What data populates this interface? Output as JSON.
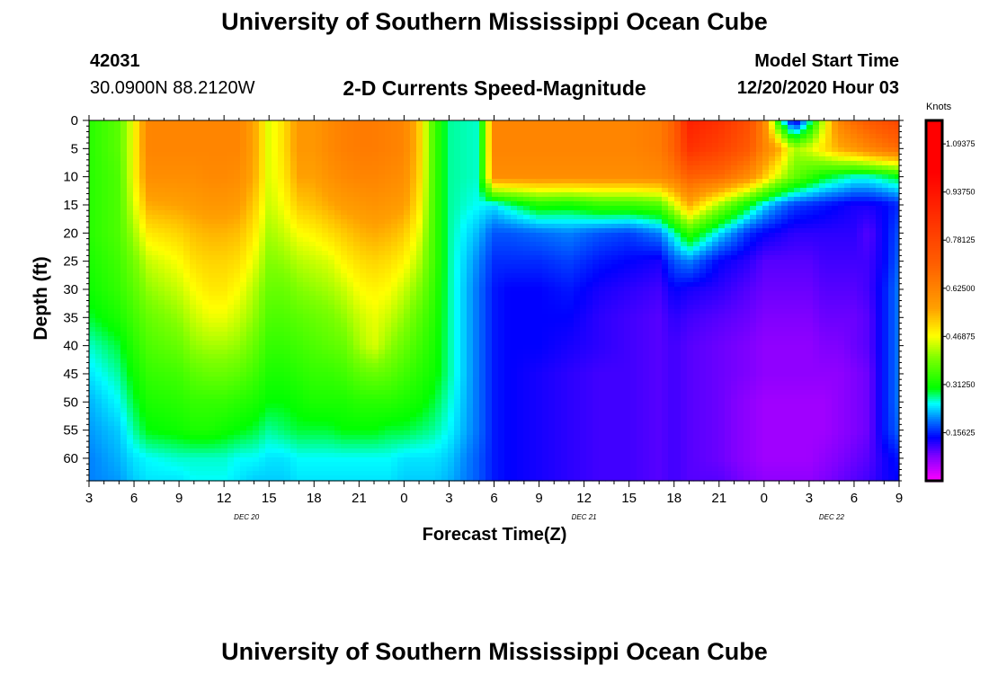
{
  "page": {
    "title_top": "University of Southern Mississippi Ocean Cube",
    "title_bottom": "University of Southern Mississippi Ocean Cube",
    "station_id": "42031",
    "coordinates": "30.0900N 88.2120W",
    "chart_title": "2-D Currents Speed-Magnitude",
    "model_label": "Model Start Time",
    "model_time": "12/20/2020 Hour 03"
  },
  "colors": {
    "background": "#ffffff",
    "axis": "#000000"
  },
  "chart_data": {
    "type": "heatmap",
    "title": "2-D Currents Speed-Magnitude",
    "xlabel": "Forecast Time(Z)",
    "ylabel": "Depth (ft)",
    "x_tick_labels": [
      "3",
      "6",
      "9",
      "12",
      "15",
      "18",
      "21",
      "0",
      "3",
      "6",
      "9",
      "12",
      "15",
      "18",
      "21",
      "0",
      "3",
      "6",
      "9"
    ],
    "x_hours_range": [
      0,
      54
    ],
    "date_labels": [
      {
        "text": "DEC 20",
        "hour": 10.5
      },
      {
        "text": "DEC 21",
        "hour": 33
      },
      {
        "text": "DEC 22",
        "hour": 49.5
      }
    ],
    "y_tick_labels": [
      "0",
      "5",
      "10",
      "15",
      "20",
      "25",
      "30",
      "35",
      "40",
      "45",
      "50",
      "55",
      "60"
    ],
    "y_range": [
      0,
      64
    ],
    "colorbar": {
      "unit": "Knots",
      "range": [
        0,
        1.17
      ],
      "tick_labels": [
        "1.09375",
        "0.93750",
        "0.78125",
        "0.62500",
        "0.46875",
        "0.31250",
        "0.15625"
      ],
      "tick_values": [
        1.09375,
        0.9375,
        0.78125,
        0.625,
        0.46875,
        0.3125,
        0.15625
      ],
      "stops": [
        {
          "v": 0.0,
          "color": "#ff00ff"
        },
        {
          "v": 0.08,
          "color": "#8000ff"
        },
        {
          "v": 0.14,
          "color": "#0000ff"
        },
        {
          "v": 0.2,
          "color": "#0080ff"
        },
        {
          "v": 0.25,
          "color": "#00ffff"
        },
        {
          "v": 0.3,
          "color": "#00ff00"
        },
        {
          "v": 0.4,
          "color": "#80ff00"
        },
        {
          "v": 0.47,
          "color": "#ffff00"
        },
        {
          "v": 0.56,
          "color": "#ffa000"
        },
        {
          "v": 0.7,
          "color": "#ff6000"
        },
        {
          "v": 1.0,
          "color": "#ff0000"
        },
        {
          "v": 1.17,
          "color": "#ff0000"
        }
      ]
    },
    "speed_field": {
      "t_hours": [
        0,
        2,
        3,
        4,
        6,
        7,
        8,
        9,
        10,
        11,
        12,
        13,
        14,
        15,
        16,
        17,
        18,
        19,
        20,
        21,
        22,
        23,
        24,
        26,
        27,
        28,
        30,
        32,
        34,
        36,
        38,
        39,
        40,
        42,
        44,
        45,
        46,
        47,
        48,
        49,
        50,
        51,
        52,
        53,
        54
      ],
      "depths_ft": [
        0,
        5,
        10,
        15,
        20,
        25,
        30,
        35,
        40,
        45,
        50,
        55,
        60,
        64
      ],
      "values_knots": [
        [
          0.33,
          0.33,
          0.33,
          0.33,
          0.33,
          0.32,
          0.31,
          0.29,
          0.26,
          0.24,
          0.22,
          0.21,
          0.2,
          0.2
        ],
        [
          0.37,
          0.37,
          0.36,
          0.36,
          0.36,
          0.35,
          0.34,
          0.32,
          0.29,
          0.27,
          0.25,
          0.23,
          0.22,
          0.21
        ],
        [
          0.47,
          0.47,
          0.47,
          0.45,
          0.42,
          0.39,
          0.37,
          0.35,
          0.33,
          0.31,
          0.29,
          0.27,
          0.24,
          0.23
        ],
        [
          0.62,
          0.62,
          0.6,
          0.55,
          0.49,
          0.44,
          0.41,
          0.38,
          0.36,
          0.34,
          0.32,
          0.3,
          0.25,
          0.24
        ],
        [
          0.62,
          0.62,
          0.6,
          0.56,
          0.51,
          0.47,
          0.44,
          0.41,
          0.38,
          0.35,
          0.33,
          0.31,
          0.26,
          0.24
        ],
        [
          0.62,
          0.62,
          0.6,
          0.57,
          0.53,
          0.5,
          0.47,
          0.44,
          0.41,
          0.37,
          0.34,
          0.32,
          0.26,
          0.25
        ],
        [
          0.62,
          0.62,
          0.61,
          0.58,
          0.54,
          0.51,
          0.49,
          0.46,
          0.42,
          0.38,
          0.34,
          0.32,
          0.26,
          0.25
        ],
        [
          0.62,
          0.62,
          0.61,
          0.58,
          0.54,
          0.51,
          0.49,
          0.46,
          0.42,
          0.38,
          0.34,
          0.31,
          0.26,
          0.25
        ],
        [
          0.62,
          0.62,
          0.6,
          0.57,
          0.53,
          0.5,
          0.47,
          0.44,
          0.41,
          0.37,
          0.33,
          0.3,
          0.25,
          0.24
        ],
        [
          0.56,
          0.56,
          0.55,
          0.52,
          0.49,
          0.46,
          0.43,
          0.41,
          0.38,
          0.35,
          0.32,
          0.29,
          0.25,
          0.23
        ],
        [
          0.45,
          0.45,
          0.45,
          0.44,
          0.42,
          0.4,
          0.38,
          0.36,
          0.34,
          0.32,
          0.3,
          0.27,
          0.24,
          0.23
        ],
        [
          0.5,
          0.5,
          0.49,
          0.47,
          0.44,
          0.41,
          0.38,
          0.36,
          0.34,
          0.32,
          0.3,
          0.28,
          0.24,
          0.23
        ],
        [
          0.58,
          0.58,
          0.56,
          0.52,
          0.47,
          0.43,
          0.4,
          0.37,
          0.35,
          0.33,
          0.31,
          0.29,
          0.25,
          0.24
        ],
        [
          0.58,
          0.58,
          0.56,
          0.53,
          0.48,
          0.44,
          0.41,
          0.38,
          0.36,
          0.34,
          0.32,
          0.29,
          0.25,
          0.24
        ],
        [
          0.61,
          0.61,
          0.59,
          0.55,
          0.5,
          0.45,
          0.42,
          0.39,
          0.37,
          0.34,
          0.32,
          0.29,
          0.25,
          0.24
        ],
        [
          0.63,
          0.63,
          0.61,
          0.57,
          0.52,
          0.48,
          0.44,
          0.41,
          0.38,
          0.35,
          0.32,
          0.3,
          0.25,
          0.24
        ],
        [
          0.64,
          0.64,
          0.62,
          0.58,
          0.54,
          0.5,
          0.47,
          0.44,
          0.42,
          0.37,
          0.33,
          0.3,
          0.25,
          0.24
        ],
        [
          0.64,
          0.64,
          0.62,
          0.59,
          0.55,
          0.51,
          0.48,
          0.46,
          0.45,
          0.38,
          0.33,
          0.3,
          0.25,
          0.24
        ],
        [
          0.63,
          0.63,
          0.61,
          0.58,
          0.54,
          0.5,
          0.47,
          0.44,
          0.41,
          0.37,
          0.33,
          0.29,
          0.25,
          0.24
        ],
        [
          0.62,
          0.62,
          0.6,
          0.57,
          0.52,
          0.48,
          0.44,
          0.41,
          0.38,
          0.35,
          0.32,
          0.29,
          0.24,
          0.23
        ],
        [
          0.52,
          0.52,
          0.51,
          0.49,
          0.46,
          0.43,
          0.4,
          0.37,
          0.35,
          0.33,
          0.31,
          0.28,
          0.24,
          0.23
        ],
        [
          0.35,
          0.35,
          0.35,
          0.35,
          0.35,
          0.35,
          0.34,
          0.33,
          0.32,
          0.31,
          0.29,
          0.27,
          0.24,
          0.23
        ],
        [
          0.27,
          0.27,
          0.27,
          0.27,
          0.27,
          0.27,
          0.27,
          0.27,
          0.27,
          0.27,
          0.26,
          0.25,
          0.23,
          0.22
        ],
        [
          0.26,
          0.26,
          0.26,
          0.25,
          0.22,
          0.2,
          0.19,
          0.19,
          0.19,
          0.19,
          0.19,
          0.19,
          0.18,
          0.18
        ],
        [
          0.62,
          0.62,
          0.6,
          0.24,
          0.18,
          0.16,
          0.15,
          0.15,
          0.15,
          0.15,
          0.15,
          0.15,
          0.15,
          0.15
        ],
        [
          0.62,
          0.62,
          0.6,
          0.27,
          0.18,
          0.16,
          0.14,
          0.14,
          0.14,
          0.14,
          0.14,
          0.14,
          0.14,
          0.14
        ],
        [
          0.62,
          0.62,
          0.6,
          0.32,
          0.19,
          0.16,
          0.14,
          0.14,
          0.14,
          0.13,
          0.13,
          0.13,
          0.13,
          0.13
        ],
        [
          0.62,
          0.62,
          0.6,
          0.31,
          0.2,
          0.17,
          0.15,
          0.14,
          0.13,
          0.12,
          0.12,
          0.12,
          0.12,
          0.12
        ],
        [
          0.62,
          0.62,
          0.6,
          0.34,
          0.18,
          0.15,
          0.13,
          0.12,
          0.12,
          0.11,
          0.11,
          0.11,
          0.11,
          0.11
        ],
        [
          0.62,
          0.62,
          0.6,
          0.34,
          0.17,
          0.14,
          0.12,
          0.11,
          0.11,
          0.11,
          0.11,
          0.11,
          0.11,
          0.11
        ],
        [
          0.64,
          0.64,
          0.61,
          0.36,
          0.2,
          0.13,
          0.11,
          0.1,
          0.1,
          0.1,
          0.1,
          0.1,
          0.1,
          0.1
        ],
        [
          0.7,
          0.7,
          0.64,
          0.45,
          0.26,
          0.18,
          0.14,
          0.12,
          0.11,
          0.11,
          0.11,
          0.11,
          0.11,
          0.11
        ],
        [
          0.9,
          0.85,
          0.7,
          0.55,
          0.34,
          0.2,
          0.13,
          0.11,
          0.1,
          0.1,
          0.1,
          0.1,
          0.1,
          0.1
        ],
        [
          0.85,
          0.8,
          0.68,
          0.42,
          0.24,
          0.14,
          0.12,
          0.1,
          0.09,
          0.09,
          0.09,
          0.09,
          0.09,
          0.1
        ],
        [
          0.75,
          0.72,
          0.6,
          0.3,
          0.16,
          0.12,
          0.1,
          0.09,
          0.08,
          0.08,
          0.07,
          0.07,
          0.07,
          0.08
        ],
        [
          0.62,
          0.62,
          0.52,
          0.24,
          0.14,
          0.1,
          0.09,
          0.08,
          0.07,
          0.07,
          0.06,
          0.06,
          0.06,
          0.07
        ],
        [
          0.3,
          0.55,
          0.44,
          0.2,
          0.13,
          0.1,
          0.09,
          0.08,
          0.07,
          0.07,
          0.06,
          0.06,
          0.06,
          0.07
        ],
        [
          0.1,
          0.42,
          0.38,
          0.17,
          0.12,
          0.1,
          0.09,
          0.08,
          0.07,
          0.07,
          0.06,
          0.06,
          0.06,
          0.07
        ],
        [
          0.25,
          0.45,
          0.34,
          0.16,
          0.12,
          0.1,
          0.09,
          0.08,
          0.07,
          0.07,
          0.06,
          0.06,
          0.06,
          0.07
        ],
        [
          0.45,
          0.5,
          0.3,
          0.15,
          0.12,
          0.11,
          0.1,
          0.09,
          0.08,
          0.07,
          0.06,
          0.06,
          0.07,
          0.08
        ],
        [
          0.62,
          0.55,
          0.28,
          0.14,
          0.12,
          0.11,
          0.1,
          0.09,
          0.08,
          0.07,
          0.07,
          0.07,
          0.08,
          0.09
        ],
        [
          0.68,
          0.58,
          0.26,
          0.13,
          0.12,
          0.11,
          0.1,
          0.09,
          0.09,
          0.08,
          0.08,
          0.08,
          0.09,
          0.1
        ],
        [
          0.72,
          0.62,
          0.26,
          0.13,
          0.1,
          0.11,
          0.11,
          0.1,
          0.1,
          0.09,
          0.09,
          0.09,
          0.1,
          0.11
        ],
        [
          0.75,
          0.65,
          0.28,
          0.14,
          0.14,
          0.14,
          0.15,
          0.15,
          0.15,
          0.15,
          0.15,
          0.15,
          0.13,
          0.13
        ],
        [
          0.78,
          0.68,
          0.3,
          0.16,
          0.18,
          0.19,
          0.2,
          0.2,
          0.2,
          0.2,
          0.2,
          0.19,
          0.15,
          0.14
        ]
      ]
    }
  }
}
